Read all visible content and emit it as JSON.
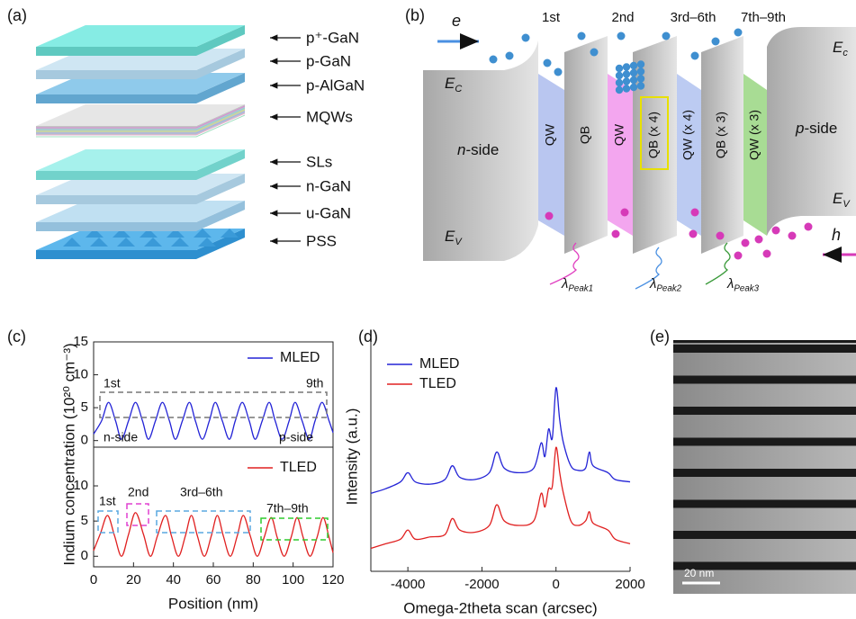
{
  "panels": {
    "a": {
      "label": "(a)",
      "layers": [
        "p⁺-GaN",
        "p-GaN",
        "p-AlGaN",
        "MQWs",
        "SLs",
        "n-GaN",
        "u-GaN",
        "PSS"
      ]
    },
    "b": {
      "label": "(b)",
      "carrier_e": "e",
      "carrier_h": "h",
      "well_headers": [
        "1st",
        "2nd",
        "3rd–6th",
        "7th–9th"
      ],
      "ec_left": {
        "main": "E",
        "sub": "C"
      },
      "ev_left": {
        "main": "E",
        "sub": "V"
      },
      "ec_right": {
        "main": "E",
        "sub": "c"
      },
      "ev_right": {
        "main": "E",
        "sub": "V"
      },
      "n_side": {
        "italic": "n",
        "rest": "-side"
      },
      "p_side": {
        "italic": "p",
        "rest": "-side"
      },
      "layers": [
        "QW",
        "QB",
        "QW",
        "QB (x 4)",
        "QW (x 4)",
        "QB (x 3)",
        "QW (x 3)"
      ],
      "emissions": [
        {
          "main": "λ",
          "sub": "Peak1"
        },
        {
          "main": "λ",
          "sub": "Peak2"
        },
        {
          "main": "λ",
          "sub": "Peak3"
        }
      ]
    },
    "c": {
      "label": "(c)"
    },
    "d": {
      "label": "(d)"
    },
    "e": {
      "label": "(e)",
      "scale_bar": "20 nm"
    }
  },
  "chart_data": [
    {
      "type": "line",
      "ylabel": "Indium concentration (10²⁰ cm⁻³)",
      "x": [
        0,
        4,
        7.5,
        11,
        14,
        17.5,
        21,
        24.5,
        27.5,
        31,
        34.5,
        38,
        41,
        44.5,
        48,
        51,
        54.5,
        58,
        61,
        64.5,
        68,
        71,
        74.5,
        78,
        81,
        84.5,
        88,
        91,
        94.5,
        98,
        101,
        104.5,
        108,
        111,
        114.5,
        118,
        120
      ],
      "series": [
        {
          "name": "MLED",
          "color": "#2323d6",
          "values": [
            1.0,
            3.0,
            5.8,
            3.0,
            0.2,
            3.0,
            5.8,
            3.0,
            0.2,
            3.0,
            5.8,
            3.0,
            0.2,
            3.0,
            5.8,
            3.0,
            0.2,
            3.0,
            5.8,
            3.0,
            0.2,
            3.0,
            5.8,
            3.0,
            0.2,
            3.0,
            5.8,
            3.0,
            0.2,
            3.0,
            5.8,
            3.0,
            0.2,
            3.0,
            5.8,
            3.0,
            1.2
          ]
        }
      ],
      "annotations": [
        "1st",
        "9th",
        "n-side",
        "p-side"
      ],
      "xlim": [
        0,
        120
      ],
      "ylim": [
        -1,
        15
      ],
      "yticks": [
        0,
        5,
        10,
        15
      ]
    },
    {
      "type": "line",
      "xlabel": "Position (nm)",
      "x": [
        0,
        3.5,
        7,
        10.5,
        14,
        17.5,
        21,
        25,
        28.5,
        32,
        36,
        39,
        42.5,
        46,
        49,
        52,
        55.5,
        59,
        62,
        65,
        68.5,
        72,
        75,
        78.5,
        82,
        85.5,
        89,
        92,
        95.5,
        99,
        102,
        105,
        108.5,
        112,
        115,
        118,
        120
      ],
      "series": [
        {
          "name": "TLED",
          "color": "#e02020",
          "values": [
            0.8,
            3.3,
            5.8,
            2.9,
            0,
            3.1,
            6.2,
            3.1,
            0,
            2.9,
            5.8,
            2.9,
            0,
            2.9,
            5.8,
            2.9,
            0,
            2.9,
            5.8,
            2.9,
            0,
            2.9,
            5.8,
            2.9,
            0,
            2.7,
            5.5,
            2.7,
            0,
            2.7,
            5.5,
            2.7,
            0,
            2.7,
            5.5,
            2.7,
            0.5
          ]
        }
      ],
      "annotations": [
        "1st",
        "2nd",
        "3rd–6th",
        "7th–9th"
      ],
      "xlim": [
        0,
        120
      ],
      "xticks": [
        0,
        20,
        40,
        60,
        80,
        100,
        120
      ],
      "ylim": [
        -1.5,
        15.5
      ],
      "yticks": [
        0,
        5,
        10
      ]
    },
    {
      "type": "line",
      "xlabel": "Omega-2theta scan (arcsec)",
      "ylabel": "Intensity (a.u.)",
      "x": [
        -5000,
        -4600,
        -4200,
        -4000,
        -3800,
        -3400,
        -3000,
        -2800,
        -2600,
        -2200,
        -1800,
        -1600,
        -1400,
        -1000,
        -600,
        -400,
        -300,
        -200,
        -100,
        0,
        100,
        200,
        400,
        600,
        800,
        900,
        1000,
        1400,
        1600,
        2000
      ],
      "series": [
        {
          "name": "MLED",
          "color": "#2323d6",
          "values": [
            3.4,
            3.6,
            3.9,
            4.3,
            3.9,
            3.8,
            4.0,
            4.6,
            4.1,
            4.0,
            4.3,
            5.2,
            4.5,
            4.3,
            4.5,
            5.6,
            5.0,
            6.2,
            5.8,
            8.0,
            6.6,
            5.6,
            4.6,
            4.4,
            4.5,
            5.2,
            4.6,
            4.3,
            4.0,
            3.9
          ]
        },
        {
          "name": "TLED",
          "color": "#e02020",
          "values": [
            1.0,
            1.2,
            1.4,
            1.8,
            1.4,
            1.5,
            1.6,
            2.3,
            1.8,
            1.7,
            2.0,
            2.9,
            2.2,
            2.0,
            2.2,
            3.4,
            2.8,
            3.6,
            3.7,
            5.4,
            4.3,
            3.4,
            2.2,
            2.0,
            2.2,
            2.6,
            2.1,
            1.8,
            1.4,
            1.2
          ]
        }
      ],
      "xlim": [
        -5000,
        2000
      ],
      "xticks": [
        -4000,
        -2000,
        0,
        2000
      ],
      "ylim": [
        0,
        10
      ]
    }
  ]
}
